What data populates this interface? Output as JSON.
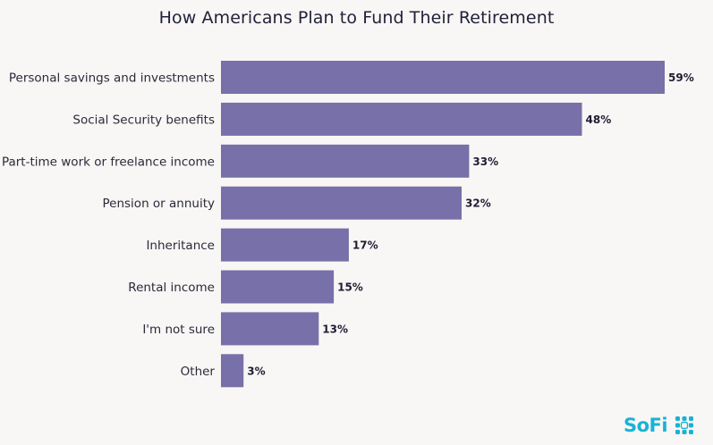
{
  "chart_data": {
    "type": "bar",
    "orientation": "horizontal",
    "title": "How Americans Plan to Fund Their Retirement",
    "categories": [
      "Personal savings and investments",
      "Social Security benefits",
      "Part-time work or freelance income",
      "Pension or annuity",
      "Inheritance",
      "Rental income",
      "I'm not sure",
      "Other"
    ],
    "values": [
      59,
      48,
      33,
      32,
      17,
      15,
      13,
      3
    ],
    "value_labels": [
      "59%",
      "48%",
      "33%",
      "32%",
      "17%",
      "15%",
      "13%",
      "3%"
    ],
    "unit": "%",
    "xlim": [
      0,
      59
    ],
    "grid": false,
    "legend": "none",
    "bar_color": "#7870a8"
  },
  "branding": {
    "logo_text": "SoFi",
    "logo_icon": "sofi-dot-grid-icon",
    "color": "#19b2d6"
  }
}
